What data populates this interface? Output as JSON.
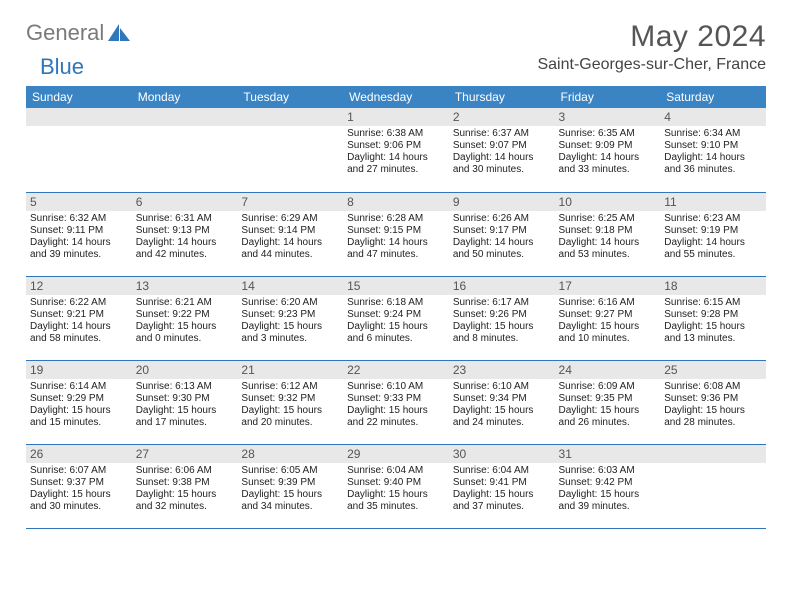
{
  "brand": {
    "text1": "General",
    "text2": "Blue",
    "sail_color": "#2f77bb",
    "grey": "#7a7a7a"
  },
  "title": "May 2024",
  "location": "Saint-Georges-sur-Cher, France",
  "header_bg": "#3b84c4",
  "header_fg": "#ffffff",
  "daynum_bg": "#e8e8e8",
  "row_border": "#2f77bb",
  "weekdays": [
    "Sunday",
    "Monday",
    "Tuesday",
    "Wednesday",
    "Thursday",
    "Friday",
    "Saturday"
  ],
  "weeks": [
    [
      null,
      null,
      null,
      {
        "n": "1",
        "sr": "6:38 AM",
        "ss": "9:06 PM",
        "dl": "14 hours and 27 minutes."
      },
      {
        "n": "2",
        "sr": "6:37 AM",
        "ss": "9:07 PM",
        "dl": "14 hours and 30 minutes."
      },
      {
        "n": "3",
        "sr": "6:35 AM",
        "ss": "9:09 PM",
        "dl": "14 hours and 33 minutes."
      },
      {
        "n": "4",
        "sr": "6:34 AM",
        "ss": "9:10 PM",
        "dl": "14 hours and 36 minutes."
      }
    ],
    [
      {
        "n": "5",
        "sr": "6:32 AM",
        "ss": "9:11 PM",
        "dl": "14 hours and 39 minutes."
      },
      {
        "n": "6",
        "sr": "6:31 AM",
        "ss": "9:13 PM",
        "dl": "14 hours and 42 minutes."
      },
      {
        "n": "7",
        "sr": "6:29 AM",
        "ss": "9:14 PM",
        "dl": "14 hours and 44 minutes."
      },
      {
        "n": "8",
        "sr": "6:28 AM",
        "ss": "9:15 PM",
        "dl": "14 hours and 47 minutes."
      },
      {
        "n": "9",
        "sr": "6:26 AM",
        "ss": "9:17 PM",
        "dl": "14 hours and 50 minutes."
      },
      {
        "n": "10",
        "sr": "6:25 AM",
        "ss": "9:18 PM",
        "dl": "14 hours and 53 minutes."
      },
      {
        "n": "11",
        "sr": "6:23 AM",
        "ss": "9:19 PM",
        "dl": "14 hours and 55 minutes."
      }
    ],
    [
      {
        "n": "12",
        "sr": "6:22 AM",
        "ss": "9:21 PM",
        "dl": "14 hours and 58 minutes."
      },
      {
        "n": "13",
        "sr": "6:21 AM",
        "ss": "9:22 PM",
        "dl": "15 hours and 0 minutes."
      },
      {
        "n": "14",
        "sr": "6:20 AM",
        "ss": "9:23 PM",
        "dl": "15 hours and 3 minutes."
      },
      {
        "n": "15",
        "sr": "6:18 AM",
        "ss": "9:24 PM",
        "dl": "15 hours and 6 minutes."
      },
      {
        "n": "16",
        "sr": "6:17 AM",
        "ss": "9:26 PM",
        "dl": "15 hours and 8 minutes."
      },
      {
        "n": "17",
        "sr": "6:16 AM",
        "ss": "9:27 PM",
        "dl": "15 hours and 10 minutes."
      },
      {
        "n": "18",
        "sr": "6:15 AM",
        "ss": "9:28 PM",
        "dl": "15 hours and 13 minutes."
      }
    ],
    [
      {
        "n": "19",
        "sr": "6:14 AM",
        "ss": "9:29 PM",
        "dl": "15 hours and 15 minutes."
      },
      {
        "n": "20",
        "sr": "6:13 AM",
        "ss": "9:30 PM",
        "dl": "15 hours and 17 minutes."
      },
      {
        "n": "21",
        "sr": "6:12 AM",
        "ss": "9:32 PM",
        "dl": "15 hours and 20 minutes."
      },
      {
        "n": "22",
        "sr": "6:10 AM",
        "ss": "9:33 PM",
        "dl": "15 hours and 22 minutes."
      },
      {
        "n": "23",
        "sr": "6:10 AM",
        "ss": "9:34 PM",
        "dl": "15 hours and 24 minutes."
      },
      {
        "n": "24",
        "sr": "6:09 AM",
        "ss": "9:35 PM",
        "dl": "15 hours and 26 minutes."
      },
      {
        "n": "25",
        "sr": "6:08 AM",
        "ss": "9:36 PM",
        "dl": "15 hours and 28 minutes."
      }
    ],
    [
      {
        "n": "26",
        "sr": "6:07 AM",
        "ss": "9:37 PM",
        "dl": "15 hours and 30 minutes."
      },
      {
        "n": "27",
        "sr": "6:06 AM",
        "ss": "9:38 PM",
        "dl": "15 hours and 32 minutes."
      },
      {
        "n": "28",
        "sr": "6:05 AM",
        "ss": "9:39 PM",
        "dl": "15 hours and 34 minutes."
      },
      {
        "n": "29",
        "sr": "6:04 AM",
        "ss": "9:40 PM",
        "dl": "15 hours and 35 minutes."
      },
      {
        "n": "30",
        "sr": "6:04 AM",
        "ss": "9:41 PM",
        "dl": "15 hours and 37 minutes."
      },
      {
        "n": "31",
        "sr": "6:03 AM",
        "ss": "9:42 PM",
        "dl": "15 hours and 39 minutes."
      },
      null
    ]
  ],
  "labels": {
    "sunrise": "Sunrise:",
    "sunset": "Sunset:",
    "daylight": "Daylight:"
  }
}
